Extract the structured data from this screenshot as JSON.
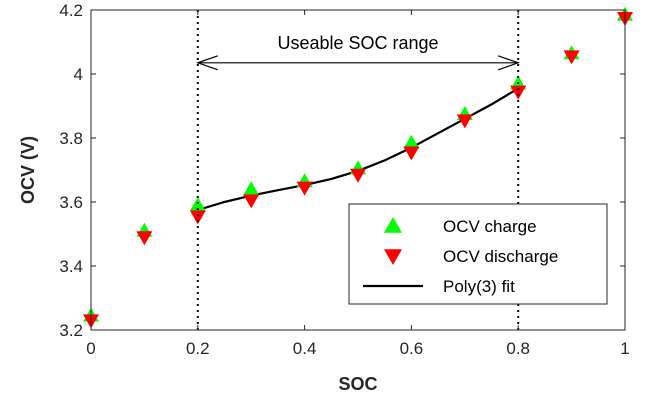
{
  "chart_data": {
    "type": "scatter",
    "title": "",
    "xlabel": "SOC",
    "ylabel": "OCV (V)",
    "xlim": [
      0,
      1
    ],
    "ylim": [
      3.2,
      4.2
    ],
    "xticks": [
      "0",
      "0.2",
      "0.4",
      "0.6",
      "0.8",
      "1"
    ],
    "yticks": [
      "3.2",
      "3.4",
      "3.6",
      "3.8",
      "4",
      "4.2"
    ],
    "grid": false,
    "legend_position": "bottom-right",
    "series": [
      {
        "name": "OCV charge",
        "marker": "triangle-up",
        "color": "#00ff00",
        "x": [
          0,
          0.1,
          0.2,
          0.3,
          0.4,
          0.5,
          0.6,
          0.7,
          0.8,
          0.9,
          1.0
        ],
        "y": [
          3.245,
          3.51,
          3.59,
          3.64,
          3.665,
          3.705,
          3.785,
          3.875,
          3.97,
          4.065,
          4.185
        ]
      },
      {
        "name": "OCV discharge",
        "marker": "triangle-down",
        "color": "#ff0000",
        "x": [
          0,
          0.1,
          0.2,
          0.3,
          0.4,
          0.5,
          0.6,
          0.7,
          0.8,
          0.9,
          1.0
        ],
        "y": [
          3.23,
          3.49,
          3.555,
          3.605,
          3.645,
          3.685,
          3.755,
          3.855,
          3.945,
          4.055,
          4.175
        ]
      },
      {
        "name": "Poly(3) fit",
        "type": "line",
        "color": "#000000",
        "x": [
          0.2,
          0.25,
          0.3,
          0.35,
          0.4,
          0.45,
          0.5,
          0.55,
          0.6,
          0.65,
          0.7,
          0.75,
          0.8
        ],
        "y": [
          3.575,
          3.6,
          3.62,
          3.637,
          3.653,
          3.672,
          3.697,
          3.73,
          3.77,
          3.815,
          3.86,
          3.905,
          3.955
        ]
      }
    ],
    "annotations": {
      "range_label": "Useable SOC range",
      "range_x": [
        0.2,
        0.8
      ],
      "arrow_y": 4.035
    }
  }
}
